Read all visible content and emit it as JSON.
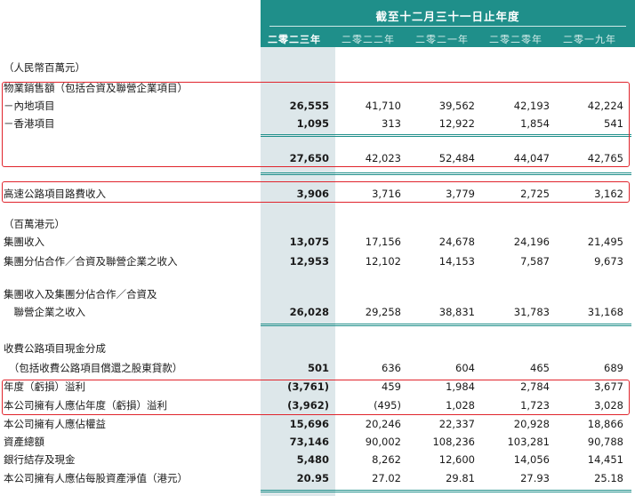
{
  "header": {
    "title": "截至十二月三十一日止年度",
    "years": [
      "二零二三年",
      "二零二二年",
      "二零二一年",
      "二零二零年",
      "二零一九年"
    ]
  },
  "rows": [
    {
      "label": "（人民幣百萬元）",
      "values": []
    },
    {
      "label": "物業銷售額（包括合資及聯營企業項目）",
      "values": []
    },
    {
      "label": "－內地項目",
      "values": [
        "26,555",
        "41,710",
        "39,562",
        "42,193",
        "42,224"
      ]
    },
    {
      "label": "－香港項目",
      "values": [
        "1,095",
        "313",
        "12,922",
        "1,854",
        "541"
      ]
    },
    {
      "label": "",
      "values": [
        "27,650",
        "42,023",
        "52,484",
        "44,047",
        "42,765"
      ]
    },
    {
      "label": "高速公路項目路費收入",
      "values": [
        "3,906",
        "3,716",
        "3,779",
        "2,725",
        "3,162"
      ]
    },
    {
      "label": "（百萬港元）",
      "values": []
    },
    {
      "label": "集團收入",
      "values": [
        "13,075",
        "17,156",
        "24,678",
        "24,196",
        "21,495"
      ]
    },
    {
      "label": "集團分佔合作／合資及聯營企業之收入",
      "values": [
        "12,953",
        "12,102",
        "14,153",
        "7,587",
        "9,673"
      ]
    },
    {
      "label": "集團收入及集團分佔合作／合資及",
      "values": []
    },
    {
      "label": "　聯營企業之收入",
      "values": [
        "26,028",
        "29,258",
        "38,831",
        "31,783",
        "31,168"
      ]
    },
    {
      "label": "收費公路項目現金分成",
      "values": []
    },
    {
      "label": "　（包括收費公路項目償還之股東貸款）",
      "values": [
        "501",
        "636",
        "604",
        "465",
        "689"
      ]
    },
    {
      "label": "年度（虧損）溢利",
      "values": [
        "(3,761)",
        "459",
        "1,984",
        "2,784",
        "3,677"
      ]
    },
    {
      "label": "本公司擁有人應佔年度（虧損）溢利",
      "values": [
        "(3,962)",
        "(495)",
        "1,028",
        "1,723",
        "3,028"
      ]
    },
    {
      "label": "本公司擁有人應佔權益",
      "values": [
        "15,696",
        "20,246",
        "22,337",
        "20,928",
        "18,866"
      ]
    },
    {
      "label": "資產總額",
      "values": [
        "73,146",
        "90,002",
        "108,236",
        "103,281",
        "90,788"
      ]
    },
    {
      "label": "銀行結存及現金",
      "values": [
        "5,480",
        "8,262",
        "12,600",
        "14,056",
        "14,451"
      ]
    },
    {
      "label": "本公司擁有人應佔每股資產淨值（港元）",
      "values": [
        "20.95",
        "27.02",
        "29.81",
        "27.93",
        "25.18"
      ]
    }
  ],
  "colors": {
    "teal": "#1f8f8a",
    "shade": "#dde7ea",
    "highlight": "#e0242c"
  }
}
